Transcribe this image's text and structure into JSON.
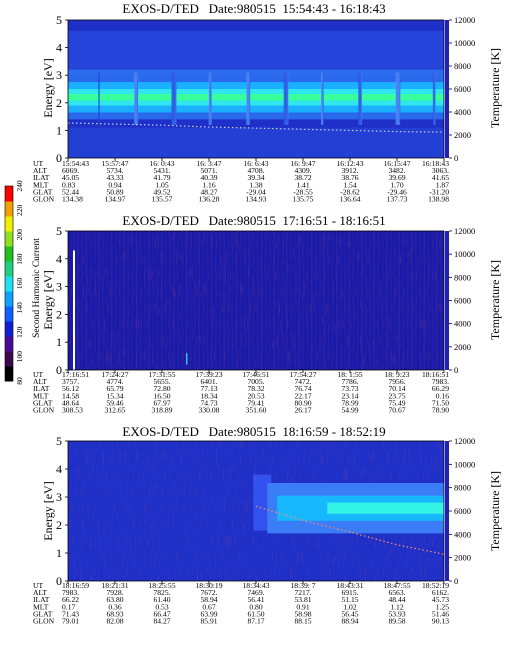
{
  "colorbar": {
    "label": "Second Harmonic Current",
    "ticks": [
      "80",
      "100",
      "120",
      "140",
      "160",
      "180",
      "200",
      "220",
      "240"
    ],
    "colors": [
      "#000000",
      "#3a0a4a",
      "#4a0a9a",
      "#1020d0",
      "#1060ff",
      "#10a0ff",
      "#20e0f0",
      "#20d080",
      "#20c020",
      "#90e020",
      "#f0f000",
      "#f0a000",
      "#ff0000"
    ]
  },
  "row_labels": [
    "UT",
    "ALT",
    "ILAT",
    "MLT",
    "GLAT",
    "GLON"
  ],
  "chart_data": [
    {
      "type": "heatmap",
      "title": "EXOS-D/TED   Date:980515  15:54:43 - 16:18:43",
      "ylabel": "Energy [eV]",
      "yticks": [
        "0",
        "1",
        "2",
        "3",
        "4",
        "5"
      ],
      "ylim": [
        0,
        5
      ],
      "y2label": "Temperature [K]",
      "y2ticks": [
        "0",
        "2000",
        "4000",
        "6000",
        "8000",
        "10000",
        "12000"
      ],
      "y2lim": [
        0,
        12000
      ],
      "columns": [
        {
          "UT": "15:54:43",
          "ALT": "6069.",
          "ILAT": "45.05",
          "MLT": "0.83",
          "GLAT": "52.44",
          "GLON": "134.38"
        },
        {
          "UT": "15:57:47",
          "ALT": "5734.",
          "ILAT": "43.33",
          "MLT": "0.94",
          "GLAT": "50.89",
          "GLON": "134.97"
        },
        {
          "UT": "16: 0:43",
          "ALT": "5431.",
          "ILAT": "41.79",
          "MLT": "1.05",
          "GLAT": "49.52",
          "GLON": "135.57"
        },
        {
          "UT": "16: 3:47",
          "ALT": "5071.",
          "ILAT": "40.39",
          "MLT": "1.16",
          "GLAT": "48.27",
          "GLON": "136.28"
        },
        {
          "UT": "16: 6:43",
          "ALT": "4708.",
          "ILAT": "39.34",
          "MLT": "1.38",
          "GLAT": "-29.04",
          "GLON": "134.93"
        },
        {
          "UT": "16: 9:47",
          "ALT": "4309.",
          "ILAT": "38.72",
          "MLT": "1.41",
          "GLAT": "-28.55",
          "GLON": "135.75"
        },
        {
          "UT": "16:12:43",
          "ALT": "3912.",
          "ILAT": "38.76",
          "MLT": "1.54",
          "GLAT": "-28.62",
          "GLON": "136.64"
        },
        {
          "UT": "16:15:47",
          "ALT": "3482.",
          "ILAT": "39.69",
          "MLT": "1.70",
          "GLAT": "-29.46",
          "GLON": "137.73"
        },
        {
          "UT": "16:18:43",
          "ALT": "3063.",
          "ILAT": "41.65",
          "MLT": "1.87",
          "GLAT": "-31.20",
          "GLON": "138.98"
        }
      ],
      "band_energy": 2.2,
      "temperature": [
        3050,
        2950,
        2850,
        2700,
        2600,
        2500,
        2400,
        2300,
        2250
      ]
    },
    {
      "type": "heatmap",
      "title": "EXOS-D/TED   Date:980515  17:16:51 - 18:16:51",
      "ylabel": "Energy [eV]",
      "yticks": [
        "0",
        "1",
        "2",
        "3",
        "4",
        "5"
      ],
      "ylim": [
        0,
        5
      ],
      "y2label": "Temperature [K]",
      "y2ticks": [
        "0",
        "2000",
        "4000",
        "6000",
        "8000",
        "10000",
        "12000"
      ],
      "y2lim": [
        0,
        12000
      ],
      "columns": [
        {
          "UT": "17:16:51",
          "ALT": "3757.",
          "ILAT": "56.12",
          "MLT": "14.58",
          "GLAT": "48.64",
          "GLON": "308.53"
        },
        {
          "UT": "17:24:27",
          "ALT": "4774.",
          "ILAT": "65.79",
          "MLT": "15.34",
          "GLAT": "59.46",
          "GLON": "312.65"
        },
        {
          "UT": "17:31:55",
          "ALT": "5655.",
          "ILAT": "72.80",
          "MLT": "16.50",
          "GLAT": "67.97",
          "GLON": "318.89"
        },
        {
          "UT": "17:39:23",
          "ALT": "6401.",
          "ILAT": "77.13",
          "MLT": "18.34",
          "GLAT": "74.73",
          "GLON": "330.08"
        },
        {
          "UT": "17:46:51",
          "ALT": "7005.",
          "ILAT": "78.32",
          "MLT": "20.53",
          "GLAT": "79.41",
          "GLON": "351.60"
        },
        {
          "UT": "17:54:27",
          "ALT": "7472.",
          "ILAT": "76.74",
          "MLT": "22.17",
          "GLAT": "80.90",
          "GLON": "26.17"
        },
        {
          "UT": "18: 1:55",
          "ALT": "7786.",
          "ILAT": "73.73",
          "MLT": "23.14",
          "GLAT": "78.99",
          "GLON": "54.99"
        },
        {
          "UT": "18: 9:23",
          "ALT": "7956.",
          "ILAT": "70.14",
          "MLT": "23.75",
          "GLAT": "75.49",
          "GLON": "70.67"
        },
        {
          "UT": "18:16:51",
          "ALT": "7983.",
          "ILAT": "66.29",
          "MLT": "0.16",
          "GLAT": "71.50",
          "GLON": "78.90"
        }
      ]
    },
    {
      "type": "heatmap",
      "title": "EXOS-D/TED   Date:980515  18:16:59 - 18:52:19",
      "ylabel": "Energy [eV]",
      "yticks": [
        "0",
        "1",
        "2",
        "3",
        "4",
        "5"
      ],
      "ylim": [
        0,
        5
      ],
      "y2label": "Temperature [K]",
      "y2ticks": [
        "0",
        "2000",
        "4000",
        "6000",
        "8000",
        "10000",
        "12000"
      ],
      "y2lim": [
        0,
        12000
      ],
      "columns": [
        {
          "UT": "18:16:59",
          "ALT": "7983.",
          "ILAT": "66.22",
          "MLT": "0.17",
          "GLAT": "71.43",
          "GLON": "79.01"
        },
        {
          "UT": "18:21:31",
          "ALT": "7928.",
          "ILAT": "63.80",
          "MLT": "0.36",
          "GLAT": "68.93",
          "GLON": "82.08"
        },
        {
          "UT": "18:25:55",
          "ALT": "7825.",
          "ILAT": "61.40",
          "MLT": "0.53",
          "GLAT": "66.47",
          "GLON": "84.27"
        },
        {
          "UT": "18:30:19",
          "ALT": "7672.",
          "ILAT": "58.94",
          "MLT": "0.67",
          "GLAT": "63.99",
          "GLON": "85.91"
        },
        {
          "UT": "18:34:43",
          "ALT": "7469.",
          "ILAT": "56.41",
          "MLT": "0.80",
          "GLAT": "61.50",
          "GLON": "87.17"
        },
        {
          "UT": "18:39: 7",
          "ALT": "7217.",
          "ILAT": "53.81",
          "MLT": "0.91",
          "GLAT": "58.98",
          "GLON": "88.15"
        },
        {
          "UT": "18:43:31",
          "ALT": "6915.",
          "ILAT": "51.15",
          "MLT": "1.02",
          "GLAT": "56.45",
          "GLON": "88.94"
        },
        {
          "UT": "18:47:55",
          "ALT": "6563.",
          "ILAT": "48.44",
          "MLT": "1.12",
          "GLAT": "53.93",
          "GLON": "89.58"
        },
        {
          "UT": "18:52:19",
          "ALT": "6162.",
          "ILAT": "45.73",
          "MLT": "1.25",
          "GLAT": "51.46",
          "GLON": "90.13"
        }
      ],
      "band_energy": 2.6,
      "temperature": [
        null,
        null,
        null,
        null,
        6400,
        5200,
        4200,
        3100,
        2300
      ]
    }
  ]
}
